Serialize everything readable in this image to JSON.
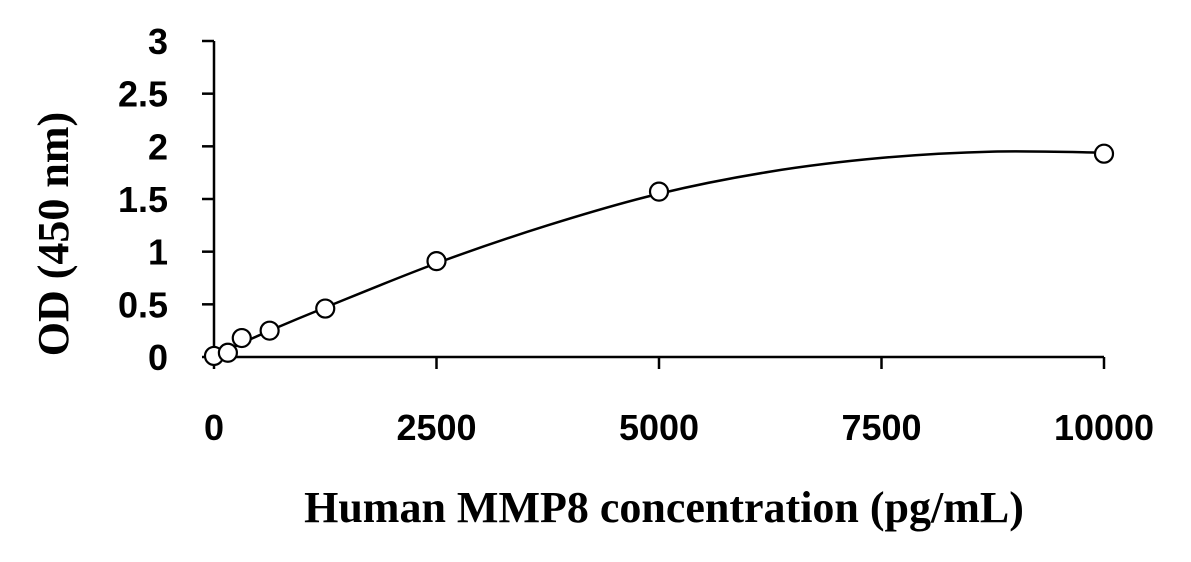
{
  "chart_data": {
    "type": "scatter",
    "title": "",
    "xlabel": "Human MMP8 concentration (pg/mL)",
    "ylabel": "OD (450 nm)",
    "xlim": [
      0,
      10000
    ],
    "ylim": [
      0,
      3
    ],
    "x_ticks": [
      "0",
      "2500",
      "5000",
      "7500",
      "10000"
    ],
    "y_ticks": [
      "0",
      "0.5",
      "1",
      "1.5",
      "2",
      "2.5",
      "3"
    ],
    "grid": false,
    "legend": "none",
    "marker": "open-circle",
    "series": [
      {
        "x": [
          0,
          156,
          312,
          625,
          1250,
          2500,
          5000,
          10000
        ],
        "y": [
          0.01,
          0.04,
          0.18,
          0.25,
          0.46,
          0.91,
          1.57,
          1.93
        ]
      }
    ],
    "fit_curve": {
      "x": [
        0,
        156,
        312,
        625,
        1250,
        2500,
        3750,
        5000,
        6250,
        7500,
        8750,
        10000
      ],
      "y": [
        0.01,
        0.07,
        0.13,
        0.25,
        0.47,
        0.89,
        1.25,
        1.55,
        1.76,
        1.89,
        1.95,
        1.94
      ]
    }
  }
}
